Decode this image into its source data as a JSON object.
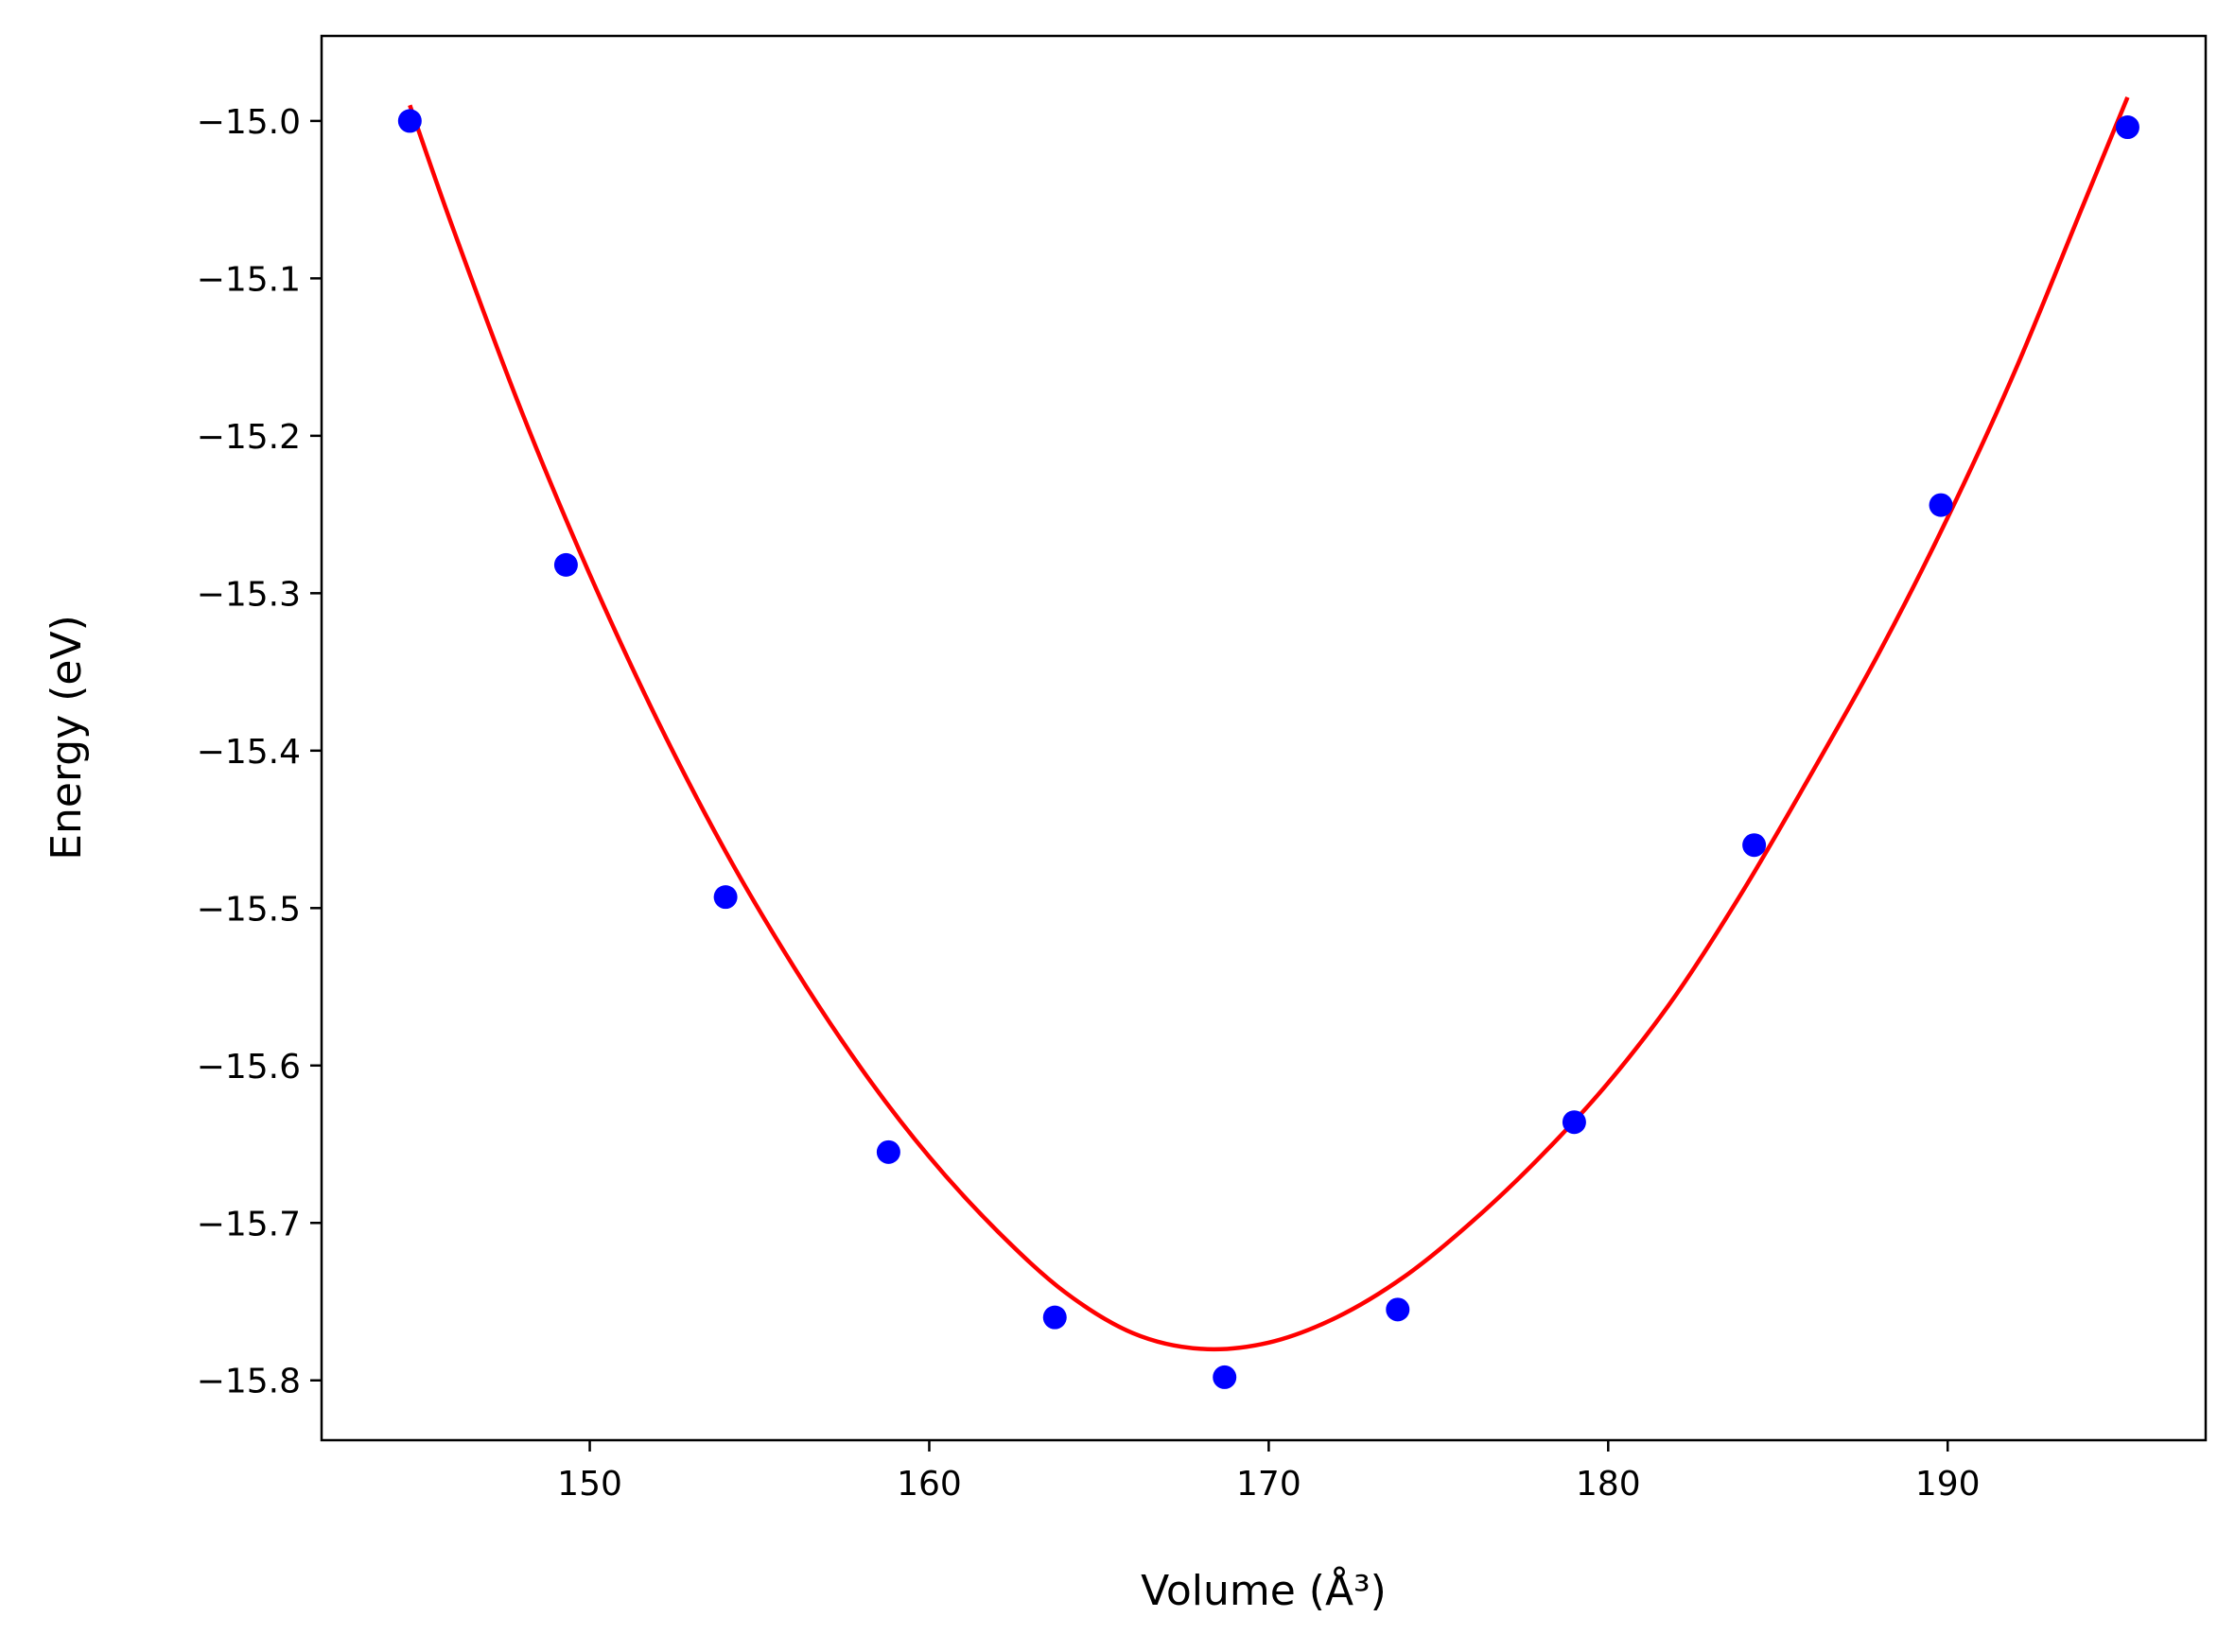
{
  "chart_data": {
    "type": "scatter",
    "xlabel": "Volume (Å³)",
    "ylabel": "Energy (eV)",
    "xlim": [
      142.1,
      197.6
    ],
    "ylim": [
      -15.838,
      -14.946
    ],
    "x_ticks": [
      150,
      160,
      170,
      180,
      190
    ],
    "y_ticks": [
      -15.0,
      -15.1,
      -15.2,
      -15.3,
      -15.4,
      -15.5,
      -15.6,
      -15.7,
      -15.8
    ],
    "x_tick_labels": [
      "150",
      "160",
      "170",
      "180",
      "190"
    ],
    "y_tick_labels": [
      "−15.0",
      "−15.1",
      "−15.2",
      "−15.3",
      "−15.4",
      "−15.5",
      "−15.6",
      "−15.7",
      "−15.8"
    ],
    "grid": false,
    "series": [
      {
        "kind": "points",
        "color": "#0000ff",
        "x": [
          144.7,
          149.3,
          154.0,
          158.8,
          163.7,
          168.7,
          173.8,
          179.0,
          184.3,
          189.8,
          195.3
        ],
        "y": [
          -15.0,
          -15.282,
          -15.493,
          -15.655,
          -15.76,
          -15.798,
          -15.755,
          -15.636,
          -15.46,
          -15.244,
          -15.004
        ]
      },
      {
        "kind": "fit-curve",
        "color": "#ff0000",
        "x": [
          144.7,
          146.0,
          148.0,
          150.0,
          152.0,
          154.0,
          156.0,
          158.0,
          160.0,
          162.0,
          164.0,
          166.0,
          168.0,
          170.0,
          172.0,
          174.0,
          176.0,
          178.0,
          180.0,
          182.0,
          184.0,
          186.0,
          188.0,
          190.0,
          192.0,
          194.0,
          195.3
        ],
        "y": [
          -14.99,
          -15.07,
          -15.185,
          -15.288,
          -15.381,
          -15.464,
          -15.537,
          -15.602,
          -15.658,
          -15.705,
          -15.744,
          -15.77,
          -15.78,
          -15.776,
          -15.76,
          -15.734,
          -15.699,
          -15.658,
          -15.611,
          -15.555,
          -15.488,
          -15.414,
          -15.337,
          -15.252,
          -15.158,
          -15.053,
          -14.985
        ]
      }
    ]
  }
}
